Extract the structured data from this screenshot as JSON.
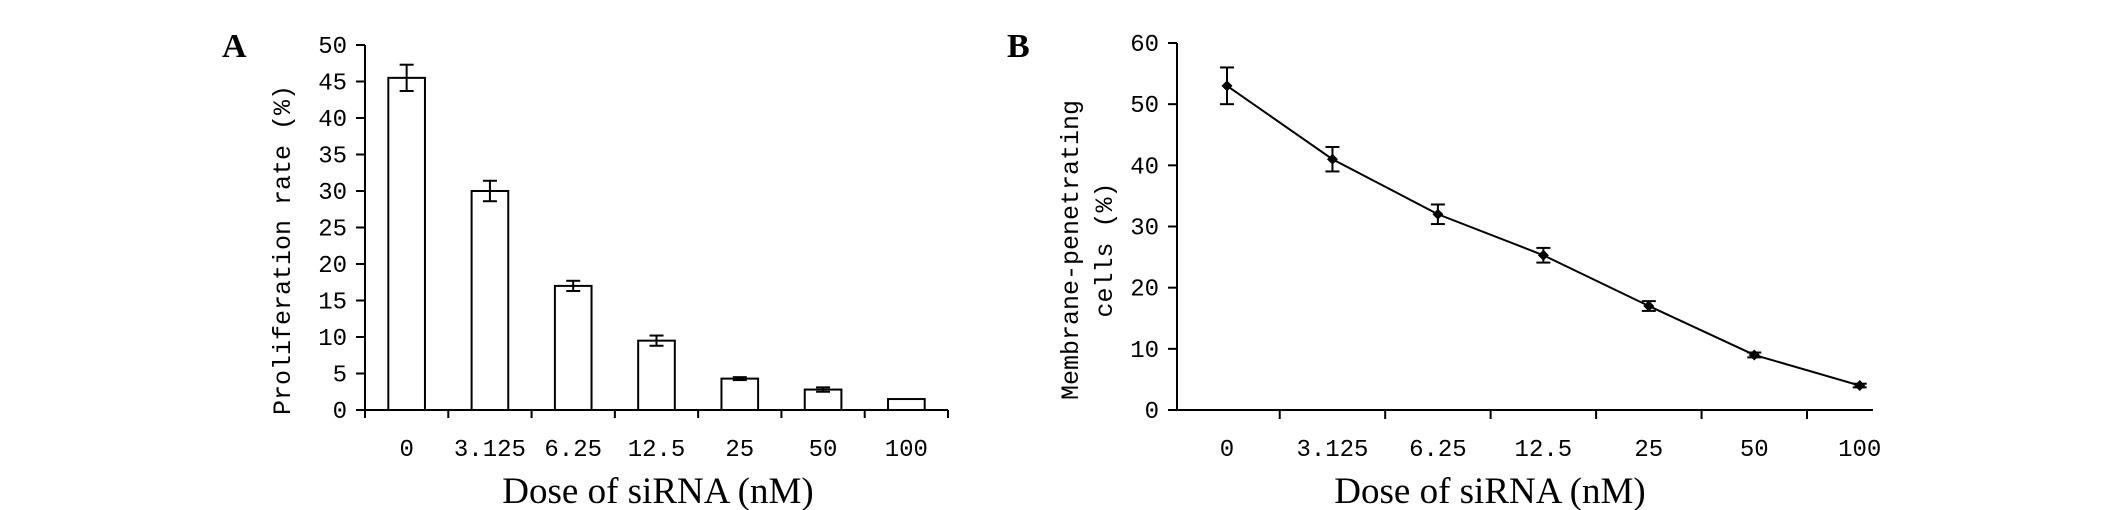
{
  "chart_data": [
    {
      "type": "bar",
      "panel_label": "A",
      "categories": [
        "0",
        "3.125",
        "6.25",
        "12.5",
        "25",
        "50",
        "100"
      ],
      "values": [
        45.5,
        30,
        17,
        9.5,
        4.3,
        2.8,
        1.5
      ],
      "errors": [
        1.8,
        1.4,
        0.7,
        0.7,
        0.2,
        0.3,
        0
      ],
      "xlabel": "Dose of siRNA (nM)",
      "ylabel": "Proliferation rate (%)",
      "ylim": [
        0,
        50
      ],
      "yticks": [
        "0",
        "5",
        "10",
        "15",
        "20",
        "25",
        "30",
        "35",
        "40",
        "45",
        "50"
      ],
      "grid": false
    },
    {
      "type": "line",
      "panel_label": "B",
      "categories": [
        "0",
        "3.125",
        "6.25",
        "12.5",
        "25",
        "50",
        "100"
      ],
      "values": [
        53,
        41,
        32,
        25.3,
        17,
        9,
        4
      ],
      "errors": [
        3,
        2,
        1.6,
        1.2,
        0.8,
        0.4,
        0.3
      ],
      "xlabel": "Dose of siRNA (nM)",
      "ylabel_lines": [
        "Membrane-penetrating",
        "cells (%)"
      ],
      "ylim": [
        0,
        60
      ],
      "yticks": [
        "0",
        "10",
        "20",
        "30",
        "40",
        "50",
        "60"
      ],
      "grid": false
    }
  ]
}
